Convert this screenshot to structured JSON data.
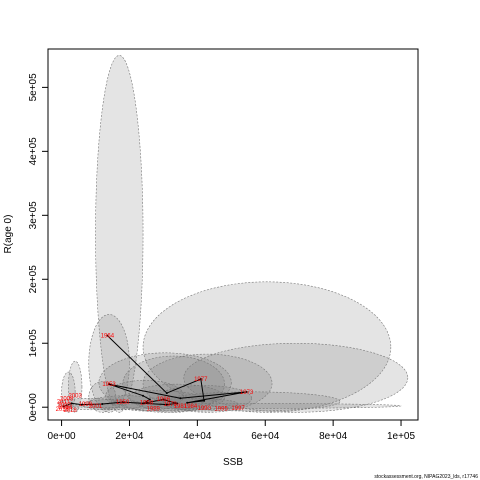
{
  "chart_data": {
    "type": "scatter",
    "title": "",
    "xlabel": "SSB",
    "ylabel": "R(age 0)",
    "xlim": [
      -4000,
      105000
    ],
    "ylim": [
      -20000,
      560000
    ],
    "x_ticks": [
      {
        "value": 0,
        "label": "0e+00"
      },
      {
        "value": 20000,
        "label": "2e+04"
      },
      {
        "value": 40000,
        "label": "4e+04"
      },
      {
        "value": 60000,
        "label": "6e+04"
      },
      {
        "value": 80000,
        "label": "8e+04"
      },
      {
        "value": 100000,
        "label": "1e+05"
      }
    ],
    "y_ticks": [
      {
        "value": 0,
        "label": "0e+00"
      },
      {
        "value": 100000,
        "label": "1e+05"
      },
      {
        "value": 200000,
        "label": "2e+05"
      },
      {
        "value": 300000,
        "label": "3e+05"
      },
      {
        "value": 400000,
        "label": "4e+05"
      },
      {
        "value": 500000,
        "label": "5e+05"
      }
    ],
    "grid": false,
    "uncertainty_ellipses": [
      {
        "x_range": [
          10000,
          24000
        ],
        "y_range": [
          -8000,
          550000
        ]
      },
      {
        "x_range": [
          24000,
          97000
        ],
        "y_range": [
          -8000,
          196000
        ]
      },
      {
        "x_range": [
          36000,
          102000
        ],
        "y_range": [
          -8000,
          100000
        ]
      },
      {
        "x_range": [
          11000,
          50000
        ],
        "y_range": [
          -8000,
          85000
        ]
      },
      {
        "x_range": [
          8000,
          20000
        ],
        "y_range": [
          -8000,
          145000
        ]
      },
      {
        "x_range": [
          24000,
          62000
        ],
        "y_range": [
          -8000,
          83000
        ]
      },
      {
        "x_range": [
          18000,
          48000
        ],
        "y_range": [
          -8000,
          80000
        ]
      },
      {
        "x_range": [
          2000,
          6000
        ],
        "y_range": [
          -8000,
          72000
        ]
      },
      {
        "x_range": [
          0,
          4000
        ],
        "y_range": [
          -8000,
          55000
        ]
      },
      {
        "x_range": [
          8000,
          16000
        ],
        "y_range": [
          -8000,
          40000
        ]
      },
      {
        "x_range": [
          13000,
          36000
        ],
        "y_range": [
          -6000,
          42000
        ]
      },
      {
        "x_range": [
          20000,
          48000
        ],
        "y_range": [
          -6000,
          36000
        ]
      },
      {
        "x_range": [
          28000,
          56000
        ],
        "y_range": [
          -6000,
          34000
        ]
      },
      {
        "x_range": [
          30000,
          82000
        ],
        "y_range": [
          -6000,
          24000
        ]
      },
      {
        "x_range": [
          16000,
          42000
        ],
        "y_range": [
          -6000,
          26000
        ]
      },
      {
        "x_range": [
          -1000,
          18000
        ],
        "y_range": [
          -4000,
          14000
        ]
      },
      {
        "x_range": [
          8000,
          30000
        ],
        "y_range": [
          -4000,
          18000
        ]
      },
      {
        "x_range": [
          26000,
          52000
        ],
        "y_range": [
          -4000,
          14000
        ]
      },
      {
        "x_range": [
          6000,
          24000
        ],
        "y_range": [
          -4000,
          12000
        ]
      },
      {
        "x_range": [
          0,
          100000
        ],
        "y_range": [
          -2000,
          6000
        ]
      }
    ],
    "trajectory": [
      {
        "year": "1964",
        "x": 13500,
        "y": 112000
      },
      {
        "year": "",
        "x": 31000,
        "y": 22000
      },
      {
        "year": "1977",
        "x": 41000,
        "y": 44000
      },
      {
        "year": "",
        "x": 42000,
        "y": 10000
      },
      {
        "year": "",
        "x": 37000,
        "y": 7000
      },
      {
        "year": "1973",
        "x": 54500,
        "y": 24000
      },
      {
        "year": "",
        "x": 35000,
        "y": 14000
      },
      {
        "year": "1953",
        "x": 14000,
        "y": 36000
      },
      {
        "year": "",
        "x": 24000,
        "y": 18000
      },
      {
        "year": "",
        "x": 26000,
        "y": 12000
      },
      {
        "year": "",
        "x": 24000,
        "y": 6000
      },
      {
        "year": "1986",
        "x": 30000,
        "y": 12000
      },
      {
        "year": "",
        "x": 34000,
        "y": 6000
      },
      {
        "year": "",
        "x": 31000,
        "y": 4000
      },
      {
        "year": "",
        "x": 18000,
        "y": 8000
      },
      {
        "year": "",
        "x": 12000,
        "y": 5000
      },
      {
        "year": "",
        "x": 6000,
        "y": 4000
      },
      {
        "year": "",
        "x": 3000,
        "y": 6000
      },
      {
        "year": "",
        "x": 1500,
        "y": 3000
      },
      {
        "year": "",
        "x": 500,
        "y": 1000
      }
    ],
    "year_labels": [
      {
        "text": "1964",
        "x": 13500,
        "y": 112000
      },
      {
        "text": "1977",
        "x": 41000,
        "y": 44000
      },
      {
        "text": "1973",
        "x": 54500,
        "y": 24000
      },
      {
        "text": "1953",
        "x": 14000,
        "y": 36000
      },
      {
        "text": "1986",
        "x": 30000,
        "y": 13000
      },
      {
        "text": "1950",
        "x": 18000,
        "y": 8000
      },
      {
        "text": "1958",
        "x": 25000,
        "y": 7000
      },
      {
        "text": "1979",
        "x": 32000,
        "y": 5000
      },
      {
        "text": "1981",
        "x": 35000,
        "y": 2000
      },
      {
        "text": "1989",
        "x": 27000,
        "y": -2000
      },
      {
        "text": "1984",
        "x": 38000,
        "y": 2000
      },
      {
        "text": "1990",
        "x": 42000,
        "y": -1000
      },
      {
        "text": "1995",
        "x": 47000,
        "y": -2000
      },
      {
        "text": "1997",
        "x": 52000,
        "y": -1000
      },
      {
        "text": "2003",
        "x": 4000,
        "y": 18000
      },
      {
        "text": "2008",
        "x": 1500,
        "y": 14000
      },
      {
        "text": "2011",
        "x": 500,
        "y": 9000
      },
      {
        "text": "2012",
        "x": 800,
        "y": 4000
      },
      {
        "text": "2014",
        "x": 1200,
        "y": 0
      },
      {
        "text": "2016",
        "x": 200,
        "y": -3000
      },
      {
        "text": "2018",
        "x": 2500,
        "y": -4000
      },
      {
        "text": "1999",
        "x": 7000,
        "y": 5000
      },
      {
        "text": "2001",
        "x": 10000,
        "y": 2000
      }
    ],
    "caption": "stockassessment.org, NIPAG2023_lds, r17746"
  }
}
